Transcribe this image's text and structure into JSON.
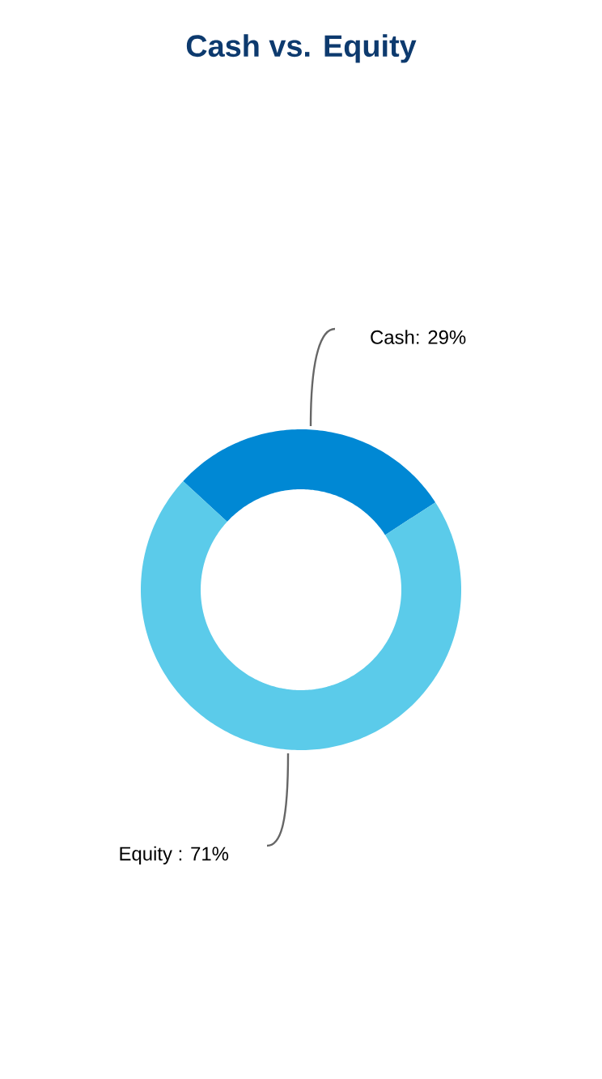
{
  "chart_data": {
    "type": "donut",
    "title": "Cash vs. Equity",
    "categories": [
      "Cash",
      "Equity"
    ],
    "values": [
      29,
      71
    ],
    "colors": [
      "#0088d4",
      "#5bcbea"
    ],
    "value_labels": [
      ": 29%",
      " : 71%"
    ]
  }
}
